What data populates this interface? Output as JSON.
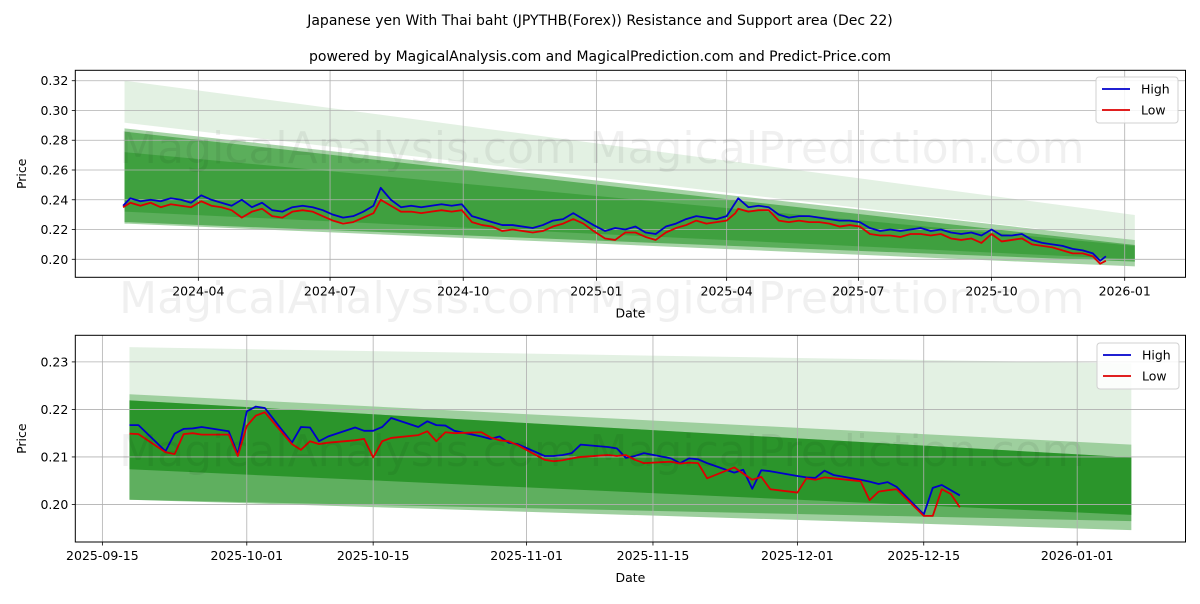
{
  "title": "Japanese yen With Thai baht (JPYTHB(Forex)) Resistance and Support area (Dec 22)",
  "subtitle": "powered by MagicalAnalysis.com and MagicalPrediction.com and Predict-Price.com",
  "watermarks": [
    "MagicalAnalysis.com",
    "MagicalPrediction.com"
  ],
  "colors": {
    "high": "#0000cc",
    "low": "#dd0000",
    "band": "#008000",
    "grid": "#b0b0b0"
  },
  "chart_data": [
    {
      "type": "line",
      "xlabel": "Date",
      "ylabel": "Price",
      "grid": true,
      "legend": {
        "placement": "top-right",
        "entries": [
          "High",
          "Low"
        ]
      },
      "xlim": [
        "2024-01-07",
        "2026-02-12"
      ],
      "ylim": [
        0.1879,
        0.327
      ],
      "xticks": [
        {
          "date": "2024-04-01",
          "label": "2024-04"
        },
        {
          "date": "2024-07-01",
          "label": "2024-07"
        },
        {
          "date": "2024-10-01",
          "label": "2024-10"
        },
        {
          "date": "2025-01-01",
          "label": "2025-01"
        },
        {
          "date": "2025-04-01",
          "label": "2025-04"
        },
        {
          "date": "2025-07-01",
          "label": "2025-07"
        },
        {
          "date": "2025-10-01",
          "label": "2025-10"
        },
        {
          "date": "2026-01-01",
          "label": "2026-01"
        }
      ],
      "yticks": [
        {
          "v": 0.2,
          "label": "0.20"
        },
        {
          "v": 0.22,
          "label": "0.22"
        },
        {
          "v": 0.24,
          "label": "0.24"
        },
        {
          "v": 0.26,
          "label": "0.26"
        },
        {
          "v": 0.28,
          "label": "0.28"
        },
        {
          "v": 0.3,
          "label": "0.30"
        },
        {
          "v": 0.32,
          "label": "0.32"
        }
      ],
      "bands": {
        "start": "2024-02-10",
        "end": "2026-01-08",
        "items": [
          {
            "upper": [
              0.32,
              0.2298
            ],
            "lower": [
              0.2918,
              0.213
            ],
            "opacity": 0.11
          },
          {
            "upper": [
              0.288,
              0.213
            ],
            "lower": [
              0.224,
              0.1952
            ],
            "opacity": 0.35
          },
          {
            "upper": [
              0.2858,
              0.2096
            ],
            "lower": [
              0.225,
              0.1984
            ],
            "opacity": 0.45
          },
          {
            "upper": [
              0.272,
              0.209
            ],
            "lower": [
              0.232,
              0.2
            ],
            "opacity": 0.3
          }
        ]
      },
      "x": [
        "2024-02-09",
        "2024-02-14",
        "2024-02-21",
        "2024-02-28",
        "2024-03-06",
        "2024-03-13",
        "2024-03-20",
        "2024-03-27",
        "2024-04-03",
        "2024-04-10",
        "2024-04-17",
        "2024-04-24",
        "2024-05-01",
        "2024-05-08",
        "2024-05-15",
        "2024-05-22",
        "2024-05-29",
        "2024-06-05",
        "2024-06-12",
        "2024-06-19",
        "2024-06-26",
        "2024-07-03",
        "2024-07-10",
        "2024-07-17",
        "2024-07-24",
        "2024-07-31",
        "2024-08-05",
        "2024-08-12",
        "2024-08-19",
        "2024-08-26",
        "2024-09-02",
        "2024-09-09",
        "2024-09-16",
        "2024-09-23",
        "2024-09-30",
        "2024-10-07",
        "2024-10-14",
        "2024-10-21",
        "2024-10-28",
        "2024-11-04",
        "2024-11-11",
        "2024-11-18",
        "2024-11-25",
        "2024-12-02",
        "2024-12-09",
        "2024-12-16",
        "2024-12-23",
        "2024-12-30",
        "2025-01-07",
        "2025-01-14",
        "2025-01-21",
        "2025-01-28",
        "2025-02-04",
        "2025-02-11",
        "2025-02-18",
        "2025-02-25",
        "2025-03-04",
        "2025-03-11",
        "2025-03-18",
        "2025-03-25",
        "2025-04-01",
        "2025-04-07",
        "2025-04-09",
        "2025-04-16",
        "2025-04-23",
        "2025-04-30",
        "2025-05-07",
        "2025-05-14",
        "2025-05-21",
        "2025-05-28",
        "2025-06-04",
        "2025-06-11",
        "2025-06-18",
        "2025-06-25",
        "2025-07-02",
        "2025-07-09",
        "2025-07-16",
        "2025-07-23",
        "2025-07-30",
        "2025-08-06",
        "2025-08-13",
        "2025-08-20",
        "2025-08-27",
        "2025-09-03",
        "2025-09-10",
        "2025-09-17",
        "2025-09-24",
        "2025-10-01",
        "2025-10-08",
        "2025-10-15",
        "2025-10-22",
        "2025-10-29",
        "2025-11-05",
        "2025-11-12",
        "2025-11-19",
        "2025-11-26",
        "2025-12-03",
        "2025-12-10",
        "2025-12-15",
        "2025-12-19"
      ],
      "series": [
        {
          "name": "High",
          "values": [
            0.236,
            0.241,
            0.239,
            0.24,
            0.239,
            0.241,
            0.24,
            0.238,
            0.243,
            0.24,
            0.238,
            0.236,
            0.24,
            0.235,
            0.238,
            0.233,
            0.232,
            0.235,
            0.236,
            0.235,
            0.233,
            0.23,
            0.228,
            0.229,
            0.232,
            0.236,
            0.248,
            0.24,
            0.235,
            0.236,
            0.235,
            0.236,
            0.237,
            0.236,
            0.237,
            0.229,
            0.227,
            0.225,
            0.223,
            0.223,
            0.222,
            0.221,
            0.223,
            0.226,
            0.227,
            0.231,
            0.227,
            0.223,
            0.219,
            0.221,
            0.22,
            0.222,
            0.218,
            0.217,
            0.222,
            0.224,
            0.227,
            0.229,
            0.228,
            0.227,
            0.229,
            0.238,
            0.241,
            0.235,
            0.236,
            0.235,
            0.23,
            0.228,
            0.229,
            0.229,
            0.228,
            0.227,
            0.226,
            0.226,
            0.225,
            0.221,
            0.219,
            0.22,
            0.219,
            0.22,
            0.221,
            0.219,
            0.22,
            0.218,
            0.217,
            0.218,
            0.216,
            0.22,
            0.216,
            0.216,
            0.217,
            0.213,
            0.211,
            0.21,
            0.209,
            0.207,
            0.206,
            0.204,
            0.199,
            0.202
          ]
        },
        {
          "name": "Low",
          "values": [
            0.235,
            0.238,
            0.236,
            0.238,
            0.235,
            0.237,
            0.236,
            0.235,
            0.239,
            0.236,
            0.235,
            0.233,
            0.228,
            0.232,
            0.234,
            0.229,
            0.228,
            0.232,
            0.233,
            0.232,
            0.229,
            0.226,
            0.224,
            0.225,
            0.228,
            0.231,
            0.24,
            0.236,
            0.232,
            0.232,
            0.231,
            0.232,
            0.233,
            0.232,
            0.233,
            0.225,
            0.223,
            0.222,
            0.219,
            0.22,
            0.219,
            0.218,
            0.219,
            0.222,
            0.224,
            0.227,
            0.224,
            0.219,
            0.214,
            0.213,
            0.218,
            0.218,
            0.215,
            0.213,
            0.218,
            0.221,
            0.223,
            0.226,
            0.224,
            0.225,
            0.226,
            0.231,
            0.234,
            0.232,
            0.233,
            0.233,
            0.226,
            0.225,
            0.226,
            0.225,
            0.225,
            0.224,
            0.222,
            0.223,
            0.222,
            0.217,
            0.216,
            0.216,
            0.215,
            0.217,
            0.217,
            0.216,
            0.217,
            0.214,
            0.213,
            0.214,
            0.211,
            0.217,
            0.212,
            0.213,
            0.214,
            0.21,
            0.209,
            0.208,
            0.206,
            0.204,
            0.204,
            0.202,
            0.197,
            0.199
          ]
        }
      ]
    },
    {
      "type": "line",
      "xlabel": "Date",
      "ylabel": "Price",
      "grid": true,
      "legend": {
        "placement": "top-right",
        "entries": [
          "High",
          "Low"
        ]
      },
      "xlim": [
        "2025-09-12",
        "2026-01-13"
      ],
      "ylim": [
        0.1921,
        0.2356
      ],
      "xticks": [
        {
          "date": "2025-09-15",
          "label": "2025-09-15"
        },
        {
          "date": "2025-10-01",
          "label": "2025-10-01"
        },
        {
          "date": "2025-10-15",
          "label": "2025-10-15"
        },
        {
          "date": "2025-11-01",
          "label": "2025-11-01"
        },
        {
          "date": "2025-11-15",
          "label": "2025-11-15"
        },
        {
          "date": "2025-12-01",
          "label": "2025-12-01"
        },
        {
          "date": "2025-12-15",
          "label": "2025-12-15"
        },
        {
          "date": "2026-01-01",
          "label": "2026-01-01"
        }
      ],
      "yticks": [
        {
          "v": 0.2,
          "label": "0.20"
        },
        {
          "v": 0.21,
          "label": "0.21"
        },
        {
          "v": 0.22,
          "label": "0.22"
        },
        {
          "v": 0.23,
          "label": "0.23"
        }
      ],
      "bands": {
        "start": "2025-09-18",
        "end": "2026-01-07",
        "items": [
          {
            "upper": [
              0.2331,
              0.2297
            ],
            "lower": [
              0.201,
              0.1946
            ],
            "opacity": 0.11
          },
          {
            "upper": [
              0.2232,
              0.2126
            ],
            "lower": [
              0.201,
              0.1946
            ],
            "opacity": 0.3
          },
          {
            "upper": [
              0.2219,
              0.2099
            ],
            "lower": [
              0.201,
              0.1965
            ],
            "opacity": 0.4
          },
          {
            "upper": [
              0.2219,
              0.2099
            ],
            "lower": [
              0.2074,
              0.1978
            ],
            "opacity": 0.55
          }
        ]
      },
      "x": [
        "2025-09-18",
        "2025-09-19",
        "2025-09-22",
        "2025-09-23",
        "2025-09-24",
        "2025-09-25",
        "2025-09-26",
        "2025-09-29",
        "2025-09-30",
        "2025-10-01",
        "2025-10-02",
        "2025-10-03",
        "2025-10-06",
        "2025-10-07",
        "2025-10-08",
        "2025-10-09",
        "2025-10-10",
        "2025-10-13",
        "2025-10-14",
        "2025-10-15",
        "2025-10-16",
        "2025-10-17",
        "2025-10-20",
        "2025-10-21",
        "2025-10-22",
        "2025-10-23",
        "2025-10-24",
        "2025-10-27",
        "2025-10-28",
        "2025-10-29",
        "2025-10-30",
        "2025-10-31",
        "2025-11-03",
        "2025-11-04",
        "2025-11-05",
        "2025-11-06",
        "2025-11-07",
        "2025-11-10",
        "2025-11-11",
        "2025-11-12",
        "2025-11-13",
        "2025-11-14",
        "2025-11-17",
        "2025-11-18",
        "2025-11-19",
        "2025-11-20",
        "2025-11-21",
        "2025-11-24",
        "2025-11-25",
        "2025-11-26",
        "2025-11-27",
        "2025-11-28",
        "2025-12-01",
        "2025-12-02",
        "2025-12-03",
        "2025-12-04",
        "2025-12-05",
        "2025-12-08",
        "2025-12-09",
        "2025-12-10",
        "2025-12-11",
        "2025-12-12",
        "2025-12-15",
        "2025-12-16",
        "2025-12-17",
        "2025-12-18",
        "2025-12-19"
      ],
      "series": [
        {
          "name": "High",
          "values": [
            0.2167,
            0.2167,
            0.2112,
            0.2149,
            0.2159,
            0.216,
            0.2163,
            0.2154,
            0.2106,
            0.2196,
            0.2206,
            0.2203,
            0.213,
            0.2163,
            0.2162,
            0.2133,
            0.2143,
            0.2162,
            0.2155,
            0.2155,
            0.2163,
            0.2182,
            0.2163,
            0.2175,
            0.2167,
            0.2166,
            0.2155,
            0.2143,
            0.2138,
            0.2143,
            0.213,
            0.2127,
            0.2102,
            0.2102,
            0.2104,
            0.2108,
            0.2126,
            0.2121,
            0.2118,
            0.2098,
            0.2102,
            0.2108,
            0.2097,
            0.2087,
            0.2097,
            0.2095,
            0.2087,
            0.2067,
            0.2073,
            0.2033,
            0.2072,
            0.207,
            0.206,
            0.2057,
            0.2056,
            0.2071,
            0.2062,
            0.2052,
            0.2048,
            0.2043,
            0.2047,
            0.2037,
            0.1979,
            0.2035,
            0.2041,
            0.203,
            0.2019
          ]
        },
        {
          "name": "Low",
          "values": [
            0.2149,
            0.2148,
            0.211,
            0.2106,
            0.2148,
            0.215,
            0.2147,
            0.2147,
            0.2102,
            0.2165,
            0.2187,
            0.2194,
            0.2127,
            0.2115,
            0.2133,
            0.2127,
            0.213,
            0.2135,
            0.2138,
            0.2099,
            0.2133,
            0.214,
            0.2146,
            0.2154,
            0.2133,
            0.2152,
            0.215,
            0.2152,
            0.2141,
            0.2135,
            0.2133,
            0.2125,
            0.2094,
            0.2091,
            0.2093,
            0.2097,
            0.21,
            0.2104,
            0.2102,
            0.2104,
            0.2094,
            0.2087,
            0.209,
            0.2086,
            0.2088,
            0.2087,
            0.2055,
            0.2078,
            0.2065,
            0.2052,
            0.2058,
            0.2032,
            0.2025,
            0.2055,
            0.2052,
            0.2057,
            0.2055,
            0.2049,
            0.2009,
            0.2027,
            0.203,
            0.2032,
            0.1976,
            0.1976,
            0.2032,
            0.2022,
            0.1994
          ]
        }
      ]
    }
  ]
}
